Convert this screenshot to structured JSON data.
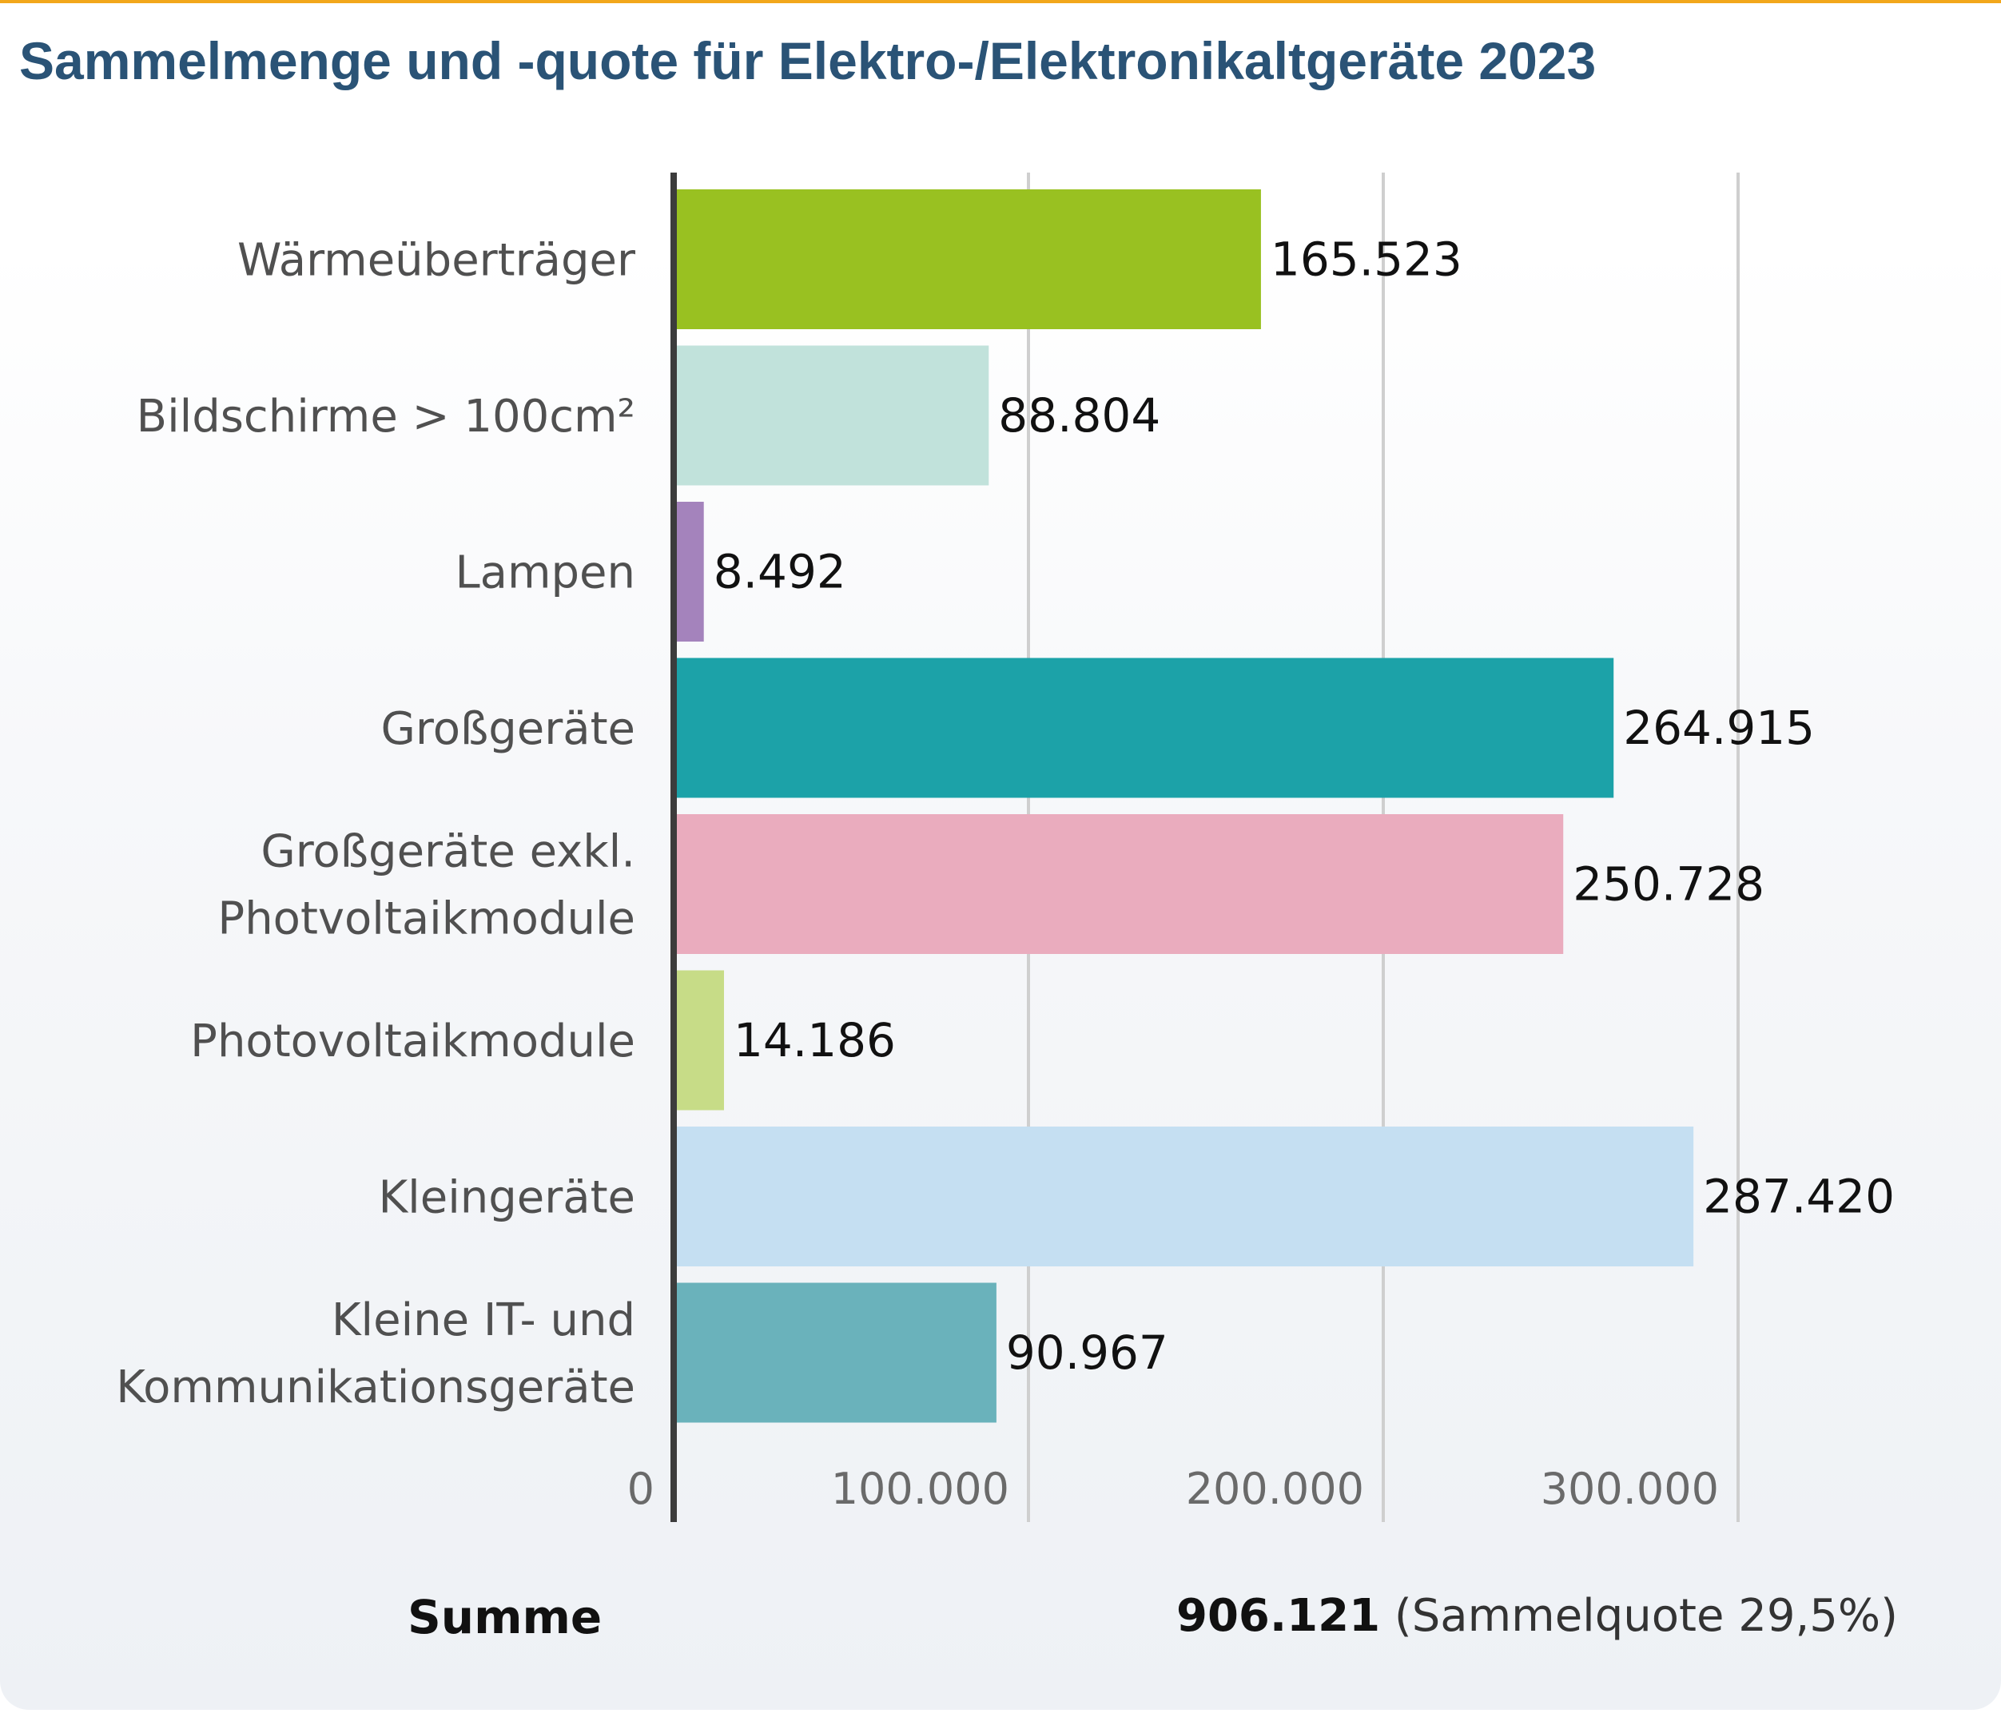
{
  "title": "Sammelmenge und -quote für Elektro-/Elektronikaltgeräte 2023",
  "chart_data": {
    "type": "bar",
    "orientation": "horizontal",
    "title": "Sammelmenge und -quote für Elektro-/Elektronikaltgeräte 2023",
    "categories": [
      "Wärmeüberträger",
      "Bildschirme > 100cm²",
      "Lampen",
      "Großgeräte",
      "Großgeräte exkl. Photvoltaikmodule",
      "Photovoltaikmodule",
      "Kleingeräte",
      "Kleine IT- und Kommunikationsgeräte"
    ],
    "category_lines": [
      [
        "Wärmeüberträger"
      ],
      [
        "Bildschirme > 100cm²"
      ],
      [
        "Lampen"
      ],
      [
        "Großgeräte"
      ],
      [
        "Großgeräte exkl.",
        "Photvoltaikmodule"
      ],
      [
        "Photovoltaikmodule"
      ],
      [
        "Kleingeräte"
      ],
      [
        "Kleine IT- und",
        "Kommunikationsgeräte"
      ]
    ],
    "values": [
      165523,
      88804,
      8492,
      264915,
      250728,
      14186,
      287420,
      90967
    ],
    "value_labels": [
      "165.523",
      "88.804",
      "8.492",
      "264.915",
      "250.728",
      "14.186",
      "287.420",
      "90.967"
    ],
    "colors": [
      "#99c121",
      "#c1e2db",
      "#a483bc",
      "#1ca2a8",
      "#eaacbe",
      "#c7dc87",
      "#c5dff2",
      "#6ab2bb"
    ],
    "xlim": [
      0,
      300000
    ],
    "xticks": [
      0,
      100000,
      200000,
      300000
    ],
    "xtick_labels": [
      "0",
      "100.000",
      "200.000",
      "300.000"
    ],
    "grid": true,
    "xlabel": "",
    "ylabel": ""
  },
  "summary": {
    "label": "Summe",
    "total": "906.121",
    "quote": "(Sammelquote 29,5%)"
  }
}
